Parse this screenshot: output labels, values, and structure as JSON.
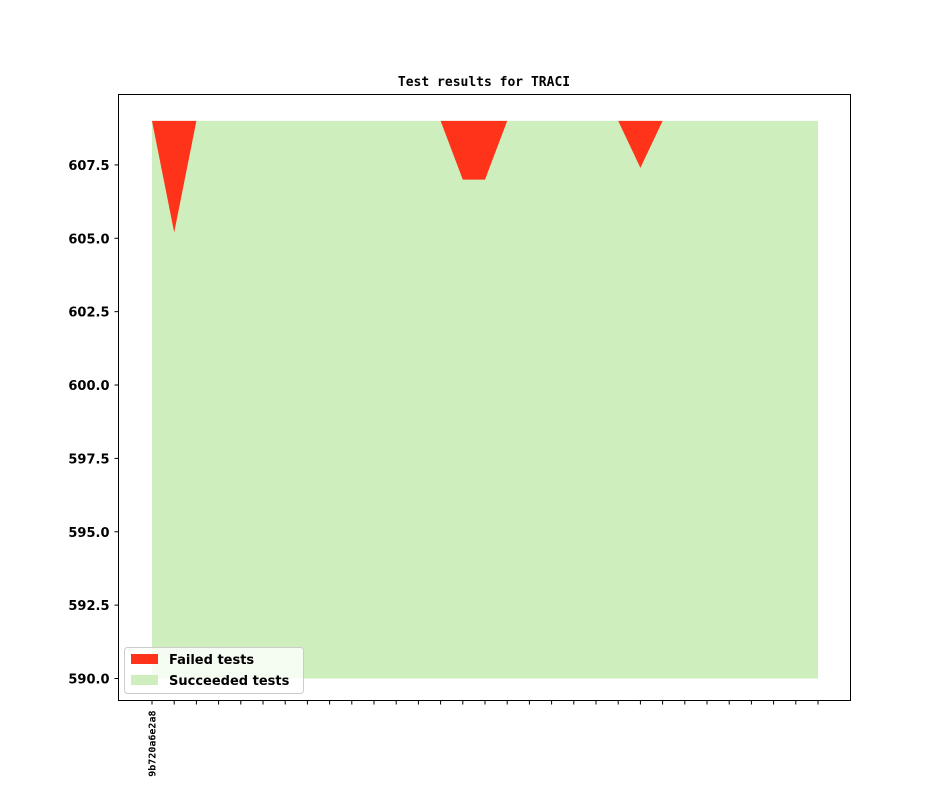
{
  "chart_data": {
    "type": "area",
    "title": "Test results for TRACI",
    "xlabel": "",
    "ylabel": "",
    "ylim": [
      589.25,
      609.9
    ],
    "yticks": [
      590.0,
      592.5,
      595.0,
      597.5,
      600.0,
      602.5,
      605.0,
      607.5
    ],
    "ytick_labels": [
      "590.0",
      "592.5",
      "595.0",
      "597.5",
      "600.0",
      "602.5",
      "605.0",
      "607.5"
    ],
    "x_tick_count": 31,
    "x_labels": [
      {
        "index": 0,
        "label": "9b720a6e2a8"
      }
    ],
    "total_tests": 609,
    "series": [
      {
        "name": "Failed tests",
        "color": "#ff3319",
        "failed_counts": [
          0,
          3.8,
          0,
          0,
          0,
          0,
          0,
          0,
          0,
          0,
          0,
          0,
          0,
          0,
          2,
          2,
          0,
          0,
          0,
          0,
          0,
          0,
          1.6,
          0,
          0,
          0,
          0,
          0,
          0,
          0,
          0
        ]
      },
      {
        "name": "Succeeded tests",
        "color": "#ceeebe",
        "values": [
          609,
          605.2,
          609,
          609,
          609,
          609,
          609,
          609,
          609,
          609,
          609,
          609,
          609,
          609,
          607,
          607,
          609,
          609,
          609,
          609,
          609,
          609,
          607.4,
          609,
          609,
          609,
          609,
          609,
          609,
          609,
          609
        ]
      }
    ],
    "succeeded_baseline": 590,
    "legend_position": "lower-left",
    "grid": false
  }
}
